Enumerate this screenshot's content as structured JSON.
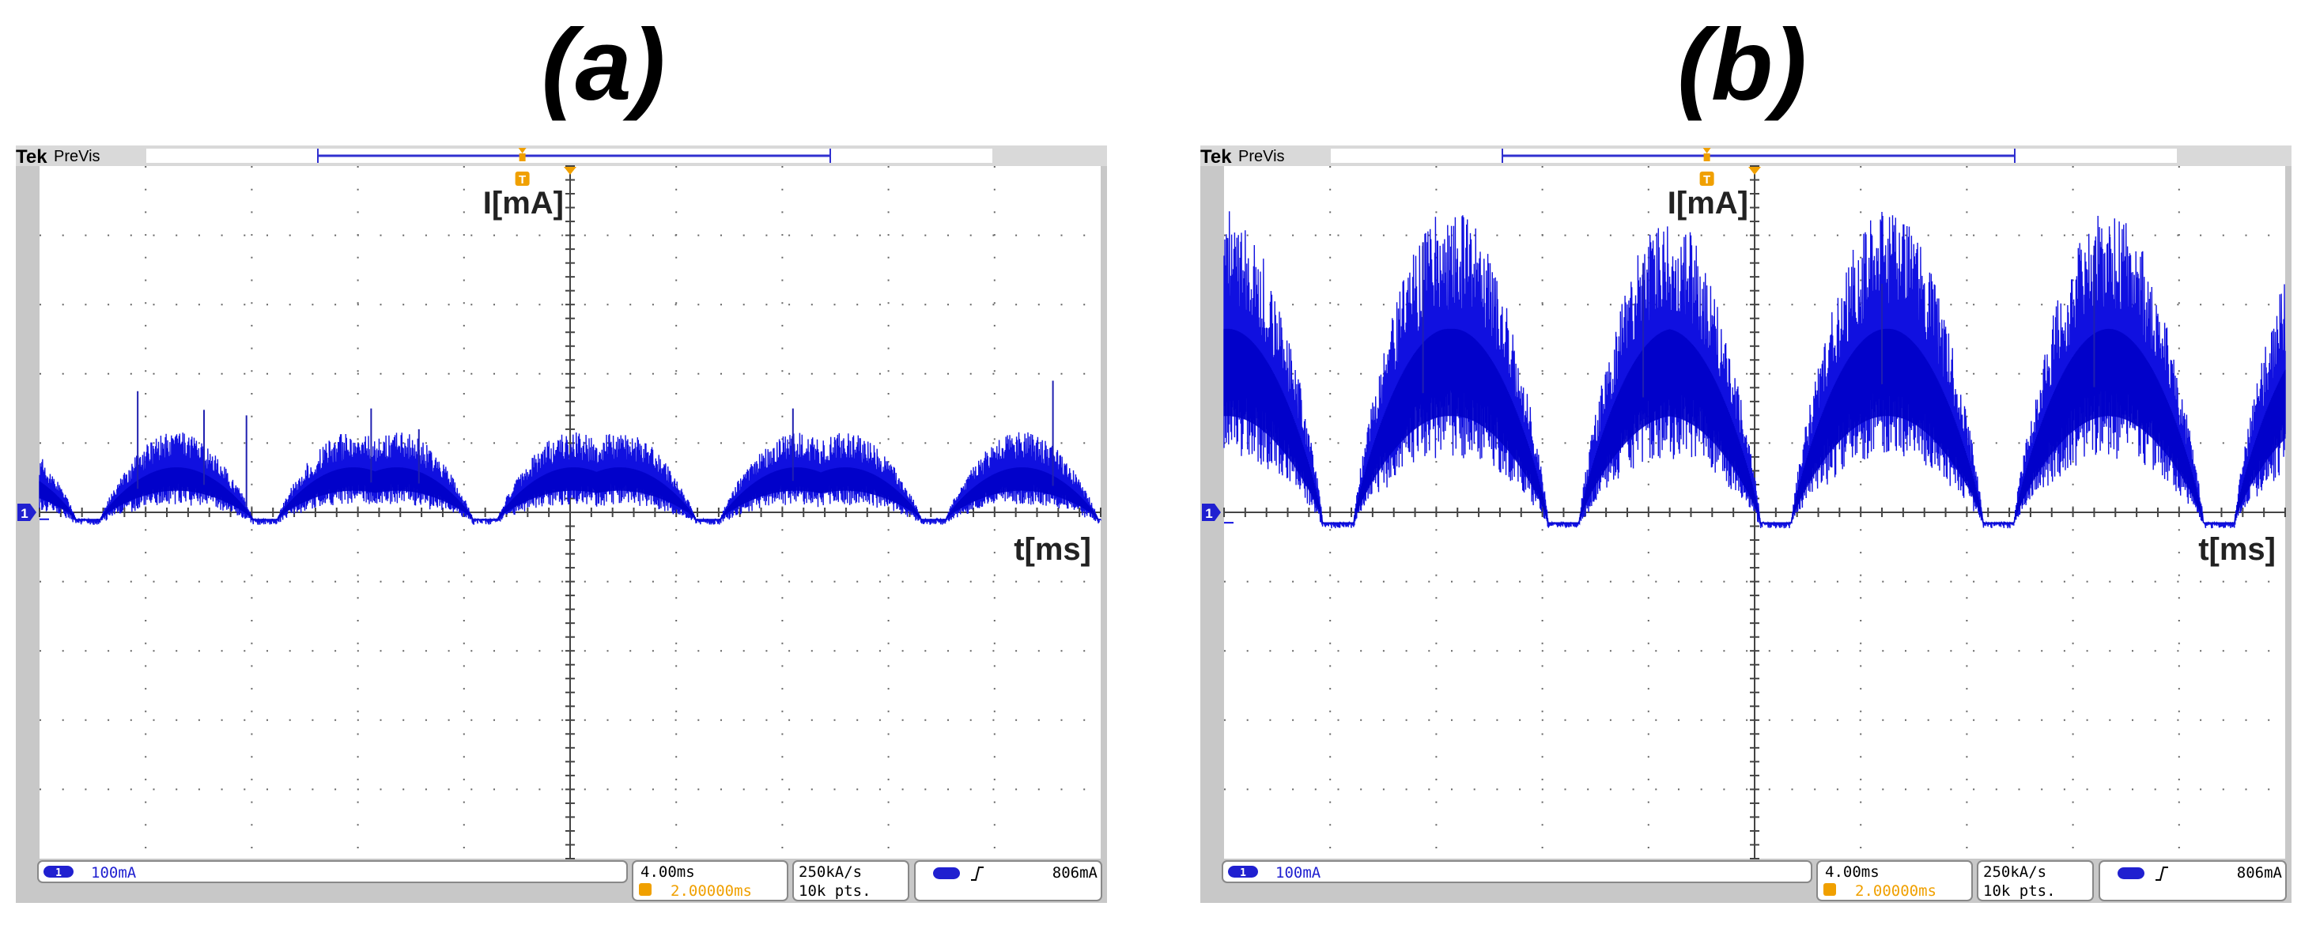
{
  "figure": {
    "panels": [
      {
        "label": "(a)",
        "brand": "Tek",
        "mode": "PreVis",
        "trigger_marker": "T",
        "ground_marker": "1",
        "y_label": "I[mA]",
        "x_label": "t[ms]",
        "channel": "1",
        "volts_div": "100mA",
        "time_div": "4.00ms",
        "trigger_pos": "2.00000ms",
        "sample_rate": "250kA/s",
        "record_len": "10k pts.",
        "trigger_level": "806mA"
      },
      {
        "label": "(b)",
        "brand": "Tek",
        "mode": "PreVis",
        "trigger_marker": "T",
        "ground_marker": "1",
        "y_label": "I[mA]",
        "x_label": "t[ms]",
        "channel": "1",
        "volts_div": "100mA",
        "time_div": "4.00ms",
        "trigger_pos": "2.00000ms",
        "sample_rate": "250kA/s",
        "record_len": "10k pts.",
        "trigger_level": "806mA"
      }
    ]
  },
  "chart_data": [
    {
      "type": "line",
      "title": "(a)",
      "xlabel": "t[ms]",
      "ylabel": "I[mA]",
      "x_unit": "ms",
      "y_unit": "mA",
      "xlim": [
        -20,
        20
      ],
      "ylim": [
        -500,
        500
      ],
      "grid": true,
      "color": "#1010e0",
      "period_ms": 6.67,
      "dips_ms": [
        -11.5,
        -3.2,
        5.2,
        13.7
      ],
      "peak_mean": 65,
      "peak_upper": 105,
      "trough": -10,
      "spikes": [
        {
          "t": -16.3,
          "v": 175
        },
        {
          "t": -13.8,
          "v": 148
        },
        {
          "t": -12.2,
          "v": 140
        },
        {
          "t": -7.5,
          "v": 150
        },
        {
          "t": -5.7,
          "v": 120
        },
        {
          "t": 8.4,
          "v": 150
        },
        {
          "t": 18.2,
          "v": 190
        }
      ]
    },
    {
      "type": "line",
      "title": "(b)",
      "xlabel": "t[ms]",
      "ylabel": "I[mA]",
      "x_unit": "ms",
      "y_unit": "mA",
      "xlim": [
        -20,
        20
      ],
      "ylim": [
        -500,
        500
      ],
      "grid": true,
      "color": "#1010e0",
      "period_ms": 8.35,
      "dips_ms": [
        -15.7,
        -7.2,
        0.8,
        9.2,
        17.5
      ],
      "peak_mean": 265,
      "peak_upper": 395,
      "trough": -15,
      "spikes": [
        {
          "t": -12.5,
          "v": 390
        },
        {
          "t": -4.2,
          "v": 360
        },
        {
          "t": 4.8,
          "v": 330
        },
        {
          "t": 12.8,
          "v": 385
        }
      ]
    }
  ],
  "colors": {
    "trace": "#1010e0",
    "grid": "#555555",
    "accent": "#f0a000",
    "frame": "#c8c8c8"
  }
}
